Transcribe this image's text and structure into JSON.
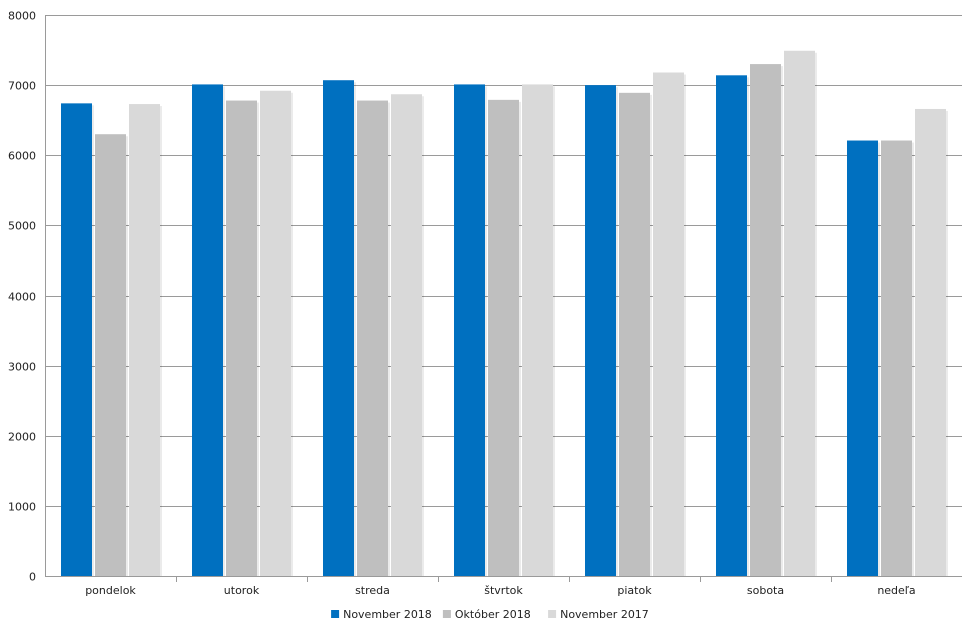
{
  "colors": {
    "series_1": "#0070c0",
    "series_2": "#bfbfbf",
    "series_3": "#d9d9d9",
    "grid": "#9a9a9a",
    "axis": "#9a9a9a"
  },
  "chart_data": {
    "type": "bar",
    "title": "",
    "xlabel": "",
    "ylabel": "",
    "categories": [
      "pondelok",
      "utorok",
      "streda",
      "štvrtok",
      "piatok",
      "sobota",
      "nedeľa"
    ],
    "ylim": [
      0,
      8000
    ],
    "yticks": [
      0,
      1000,
      2000,
      3000,
      4000,
      5000,
      6000,
      7000,
      8000
    ],
    "grid": true,
    "legend_position": "bottom",
    "series": [
      {
        "name": "November 2018",
        "color": "#0070c0",
        "values": [
          6740,
          7010,
          7070,
          7010,
          7000,
          7140,
          6210
        ]
      },
      {
        "name": "Október 2018",
        "color": "#bfbfbf",
        "values": [
          6300,
          6780,
          6780,
          6790,
          6890,
          7300,
          6210
        ]
      },
      {
        "name": "November 2017",
        "color": "#d9d9d9",
        "values": [
          6730,
          6920,
          6870,
          7010,
          7180,
          7490,
          6660
        ]
      }
    ]
  }
}
